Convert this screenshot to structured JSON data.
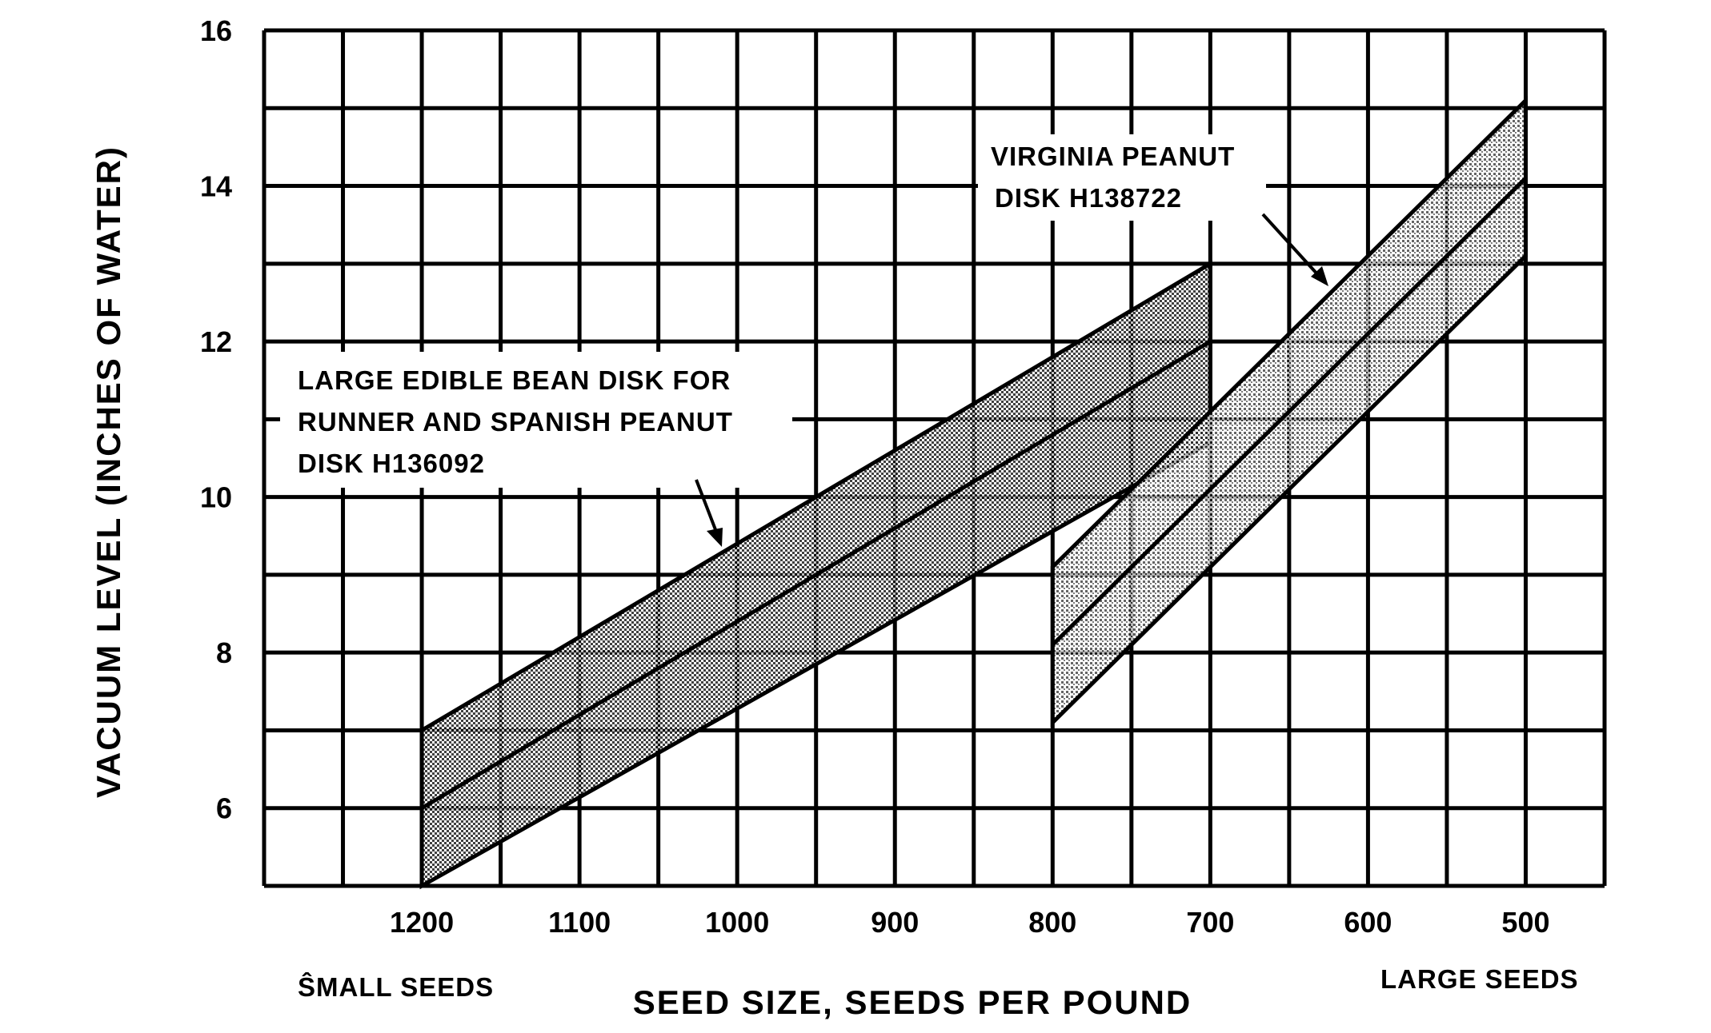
{
  "chart_data": {
    "type": "area",
    "title": "",
    "xlabel": "SEED SIZE, SEEDS PER POUND",
    "ylabel": "VACUUM LEVEL (INCHES OF WATER)",
    "x_reversed": true,
    "x_ticks": [
      1200,
      1100,
      1000,
      900,
      800,
      700,
      600,
      500
    ],
    "y_ticks": [
      6,
      8,
      10,
      12,
      14,
      16
    ],
    "xlim": [
      1300,
      450
    ],
    "ylim": [
      5,
      16
    ],
    "grid": true,
    "x_end_labels": {
      "left": "ŜMALL  SEEDS",
      "right": "LARGE  SEEDS"
    },
    "bands": [
      {
        "name": "LARGE EDIBLE BEAN DISK FOR RUNNER AND SPANISH PEANUT DISK H136092",
        "label_lines": [
          "LARGE  EDIBLE  BEAN  DISK  FOR",
          "RUNNER  AND  SPANISH  PEANUT",
          "DISK    H136092"
        ],
        "x": [
          1200,
          700
        ],
        "upper": [
          7,
          13
        ],
        "center": [
          6,
          12
        ],
        "lower": [
          5,
          10.7
        ]
      },
      {
        "name": "VIRGINIA PEANUT DISK H138722",
        "label_lines": [
          "VIRGINIA  PEANUT",
          "DISK    H138722"
        ],
        "x": [
          800,
          500
        ],
        "upper": [
          9.1,
          15.1
        ],
        "center": [
          8.1,
          14.1
        ],
        "lower": [
          7.1,
          13.1
        ]
      }
    ]
  }
}
